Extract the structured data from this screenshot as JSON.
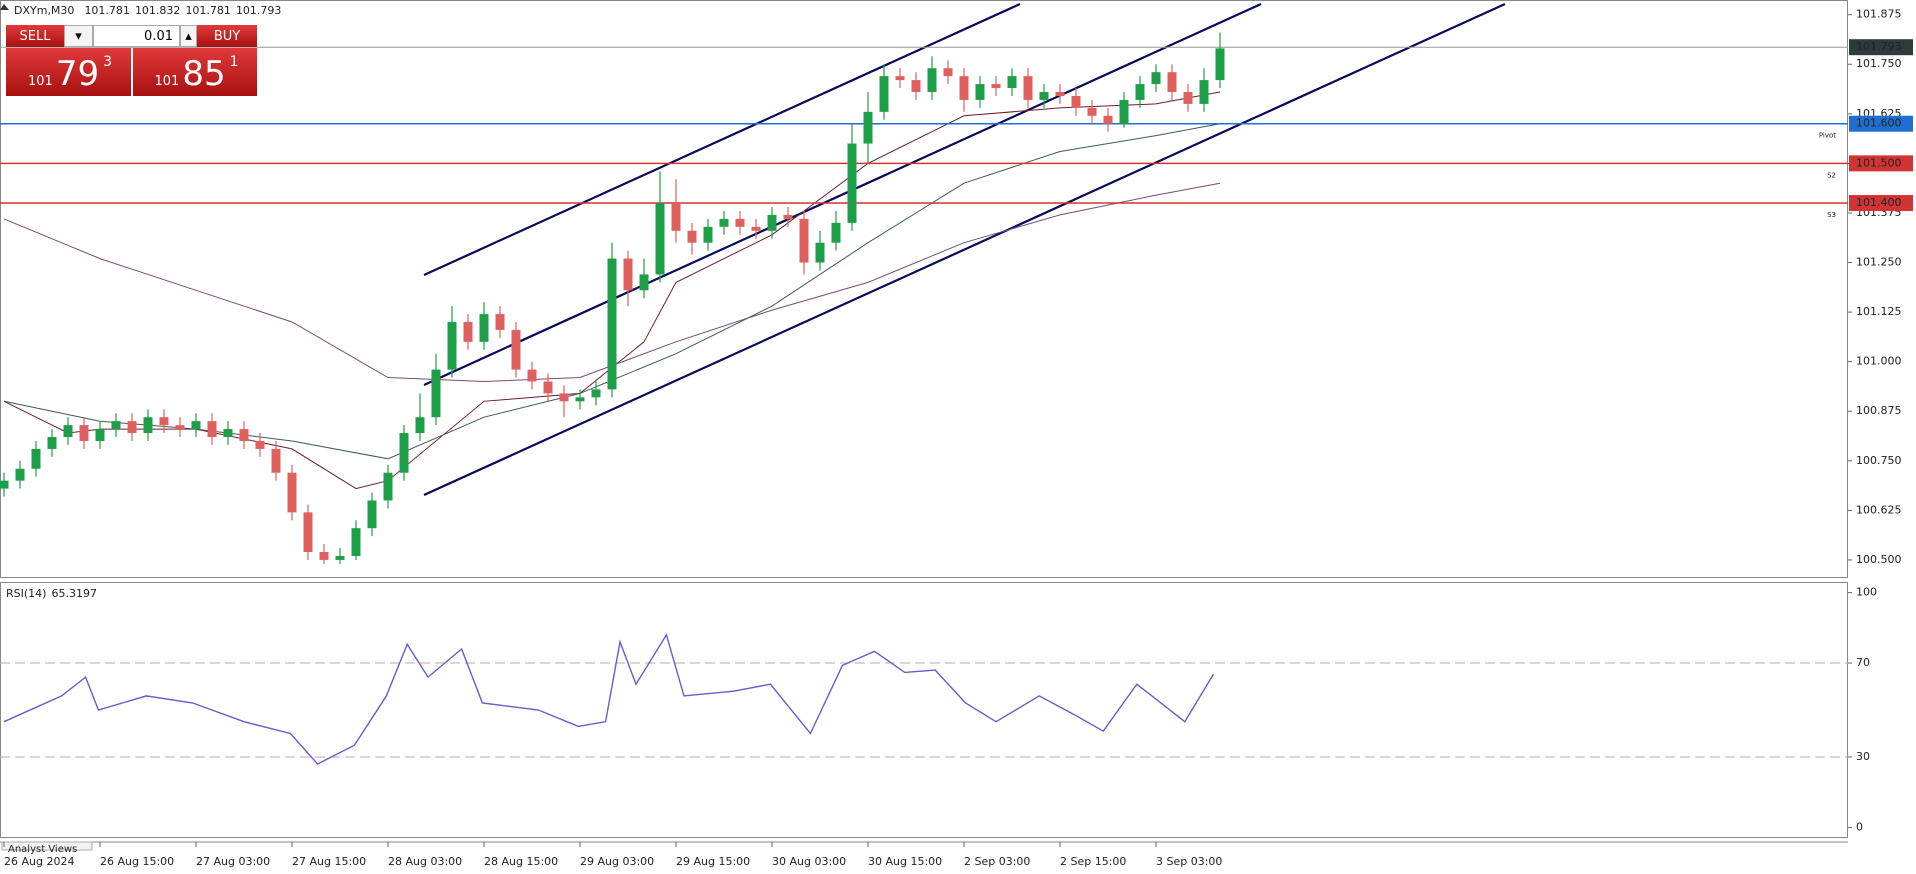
{
  "header": {
    "symbol": "DXYm,M30",
    "ohlc": [
      101.781,
      101.832,
      101.781,
      101.793
    ]
  },
  "trade_panel": {
    "sell": "SELL",
    "buy": "BUY",
    "volume": "0.01",
    "bid": [
      "101",
      "79",
      "3"
    ],
    "ask": [
      "101",
      "85",
      "1"
    ]
  },
  "footer": {
    "tab": "Analyst Views"
  },
  "chart_data": [
    {
      "type": "candlestick",
      "categories": [
        "26 Aug 2024",
        null,
        null,
        null,
        null,
        null,
        "26 Aug 15:00",
        null,
        null,
        null,
        null,
        null,
        "27 Aug 03:00",
        null,
        null,
        null,
        null,
        null,
        "27 Aug 15:00",
        null,
        null,
        null,
        null,
        null,
        "28 Aug 03:00",
        null,
        null,
        null,
        null,
        null,
        "28 Aug 15:00",
        null,
        null,
        null,
        null,
        null,
        "29 Aug 03:00",
        null,
        null,
        null,
        null,
        null,
        "29 Aug 15:00",
        null,
        null,
        null,
        null,
        null,
        "30 Aug 03:00",
        null,
        null,
        null,
        null,
        null,
        "30 Aug 15:00",
        null,
        null,
        null,
        null,
        null,
        "2 Sep 03:00",
        null,
        null,
        null,
        null,
        null,
        "2 Sep 15:00",
        null,
        null,
        null,
        null,
        null,
        "3 Sep 03:00",
        null,
        null,
        null,
        null
      ],
      "open": [
        100.68,
        100.7,
        100.73,
        100.78,
        100.81,
        100.84,
        100.8,
        100.83,
        100.85,
        100.82,
        100.86,
        100.84,
        100.83,
        100.85,
        100.81,
        100.83,
        100.8,
        100.78,
        100.72,
        100.62,
        100.52,
        100.5,
        100.51,
        100.58,
        100.65,
        100.72,
        100.82,
        100.86,
        100.98,
        101.1,
        101.05,
        101.12,
        101.08,
        100.98,
        100.95,
        100.92,
        100.9,
        100.91,
        100.93,
        101.26,
        101.18,
        101.22,
        101.4,
        101.33,
        101.3,
        101.34,
        101.36,
        101.34,
        101.33,
        101.37,
        101.36,
        101.25,
        101.3,
        101.35,
        101.55,
        101.63,
        101.72,
        101.71,
        101.68,
        101.74,
        101.72,
        101.66,
        101.7,
        101.69,
        101.72,
        101.66,
        101.68,
        101.67,
        101.64,
        101.62,
        101.6,
        101.66,
        101.7,
        101.73,
        101.68,
        101.65,
        101.71
      ],
      "high": [
        100.72,
        100.75,
        100.8,
        100.83,
        100.86,
        100.86,
        100.85,
        100.87,
        100.87,
        100.88,
        100.88,
        100.86,
        100.87,
        100.87,
        100.85,
        100.85,
        100.82,
        100.8,
        100.74,
        100.64,
        100.54,
        100.53,
        100.6,
        100.67,
        100.74,
        100.84,
        100.92,
        101.02,
        101.14,
        101.12,
        101.15,
        101.14,
        101.1,
        101.0,
        100.97,
        100.94,
        100.93,
        100.95,
        101.3,
        101.28,
        101.26,
        101.48,
        101.46,
        101.35,
        101.36,
        101.38,
        101.38,
        101.36,
        101.39,
        101.39,
        101.38,
        101.33,
        101.38,
        101.6,
        101.68,
        101.75,
        101.74,
        101.73,
        101.77,
        101.76,
        101.74,
        101.72,
        101.72,
        101.74,
        101.74,
        101.7,
        101.7,
        101.69,
        101.66,
        101.64,
        101.68,
        101.72,
        101.75,
        101.75,
        101.7,
        101.74,
        101.83
      ],
      "low": [
        100.66,
        100.68,
        100.71,
        100.76,
        100.79,
        100.78,
        100.78,
        100.81,
        100.8,
        100.8,
        100.82,
        100.81,
        100.81,
        100.79,
        100.79,
        100.78,
        100.76,
        100.7,
        100.6,
        100.5,
        100.49,
        100.49,
        100.5,
        100.56,
        100.63,
        100.7,
        100.8,
        100.84,
        100.96,
        101.03,
        101.03,
        101.06,
        100.96,
        100.93,
        100.9,
        100.86,
        100.88,
        100.89,
        100.91,
        101.14,
        101.16,
        101.2,
        101.3,
        101.27,
        101.28,
        101.32,
        101.32,
        101.31,
        101.31,
        101.34,
        101.22,
        101.23,
        101.28,
        101.33,
        101.5,
        101.61,
        101.69,
        101.66,
        101.66,
        101.7,
        101.63,
        101.64,
        101.67,
        101.67,
        101.64,
        101.64,
        101.65,
        101.62,
        101.6,
        101.58,
        101.59,
        101.64,
        101.68,
        101.66,
        101.63,
        101.63,
        101.69
      ],
      "close": [
        100.7,
        100.73,
        100.78,
        100.81,
        100.84,
        100.8,
        100.83,
        100.85,
        100.82,
        100.86,
        100.84,
        100.83,
        100.85,
        100.81,
        100.83,
        100.8,
        100.78,
        100.72,
        100.62,
        100.52,
        100.5,
        100.51,
        100.58,
        100.65,
        100.72,
        100.82,
        100.86,
        100.98,
        101.1,
        101.05,
        101.12,
        101.08,
        100.98,
        100.95,
        100.92,
        100.9,
        100.91,
        100.93,
        101.26,
        101.18,
        101.22,
        101.4,
        101.33,
        101.3,
        101.34,
        101.36,
        101.34,
        101.33,
        101.37,
        101.36,
        101.25,
        101.3,
        101.35,
        101.55,
        101.63,
        101.72,
        101.71,
        101.68,
        101.74,
        101.72,
        101.66,
        101.7,
        101.69,
        101.72,
        101.66,
        101.68,
        101.67,
        101.64,
        101.62,
        101.6,
        101.66,
        101.7,
        101.73,
        101.68,
        101.65,
        101.71,
        101.79
      ],
      "up_color": "#1f9e4a",
      "down_color": "#e06060",
      "series": [
        {
          "color": "#6b1f2a",
          "x": [
            0,
            4,
            6,
            12,
            18,
            22,
            24,
            30,
            36,
            40,
            42,
            48,
            54,
            60,
            66,
            72,
            76
          ],
          "values": [
            100.9,
            100.82,
            100.83,
            100.83,
            100.78,
            100.68,
            100.7,
            100.9,
            100.92,
            101.05,
            101.2,
            101.32,
            101.5,
            101.62,
            101.64,
            101.65,
            101.68
          ]
        },
        {
          "color": "#3f5a55",
          "x": [
            0,
            6,
            12,
            18,
            24,
            30,
            36,
            42,
            48,
            54,
            60,
            66,
            72,
            76
          ],
          "values": [
            100.9,
            100.85,
            100.83,
            100.8,
            100.755,
            100.86,
            100.92,
            101.02,
            101.14,
            101.3,
            101.45,
            101.53,
            101.57,
            101.6
          ]
        },
        {
          "color": "#7a4a78",
          "x": [
            0,
            6,
            12,
            18,
            24,
            30,
            36,
            42,
            48,
            54,
            60,
            66,
            72,
            76
          ],
          "values": [
            101.36,
            101.26,
            101.18,
            101.1,
            100.96,
            100.95,
            100.96,
            101.05,
            101.13,
            101.2,
            101.3,
            101.37,
            101.42,
            101.45
          ]
        }
      ],
      "ylim": [
        100.457,
        101.912
      ],
      "yticks": [
        {
          "value": 100.5,
          "label": "100.500"
        },
        100.625,
        {
          "value": 100.75,
          "label": "100.750"
        },
        100.875,
        {
          "value": 101,
          "label": "101.000"
        },
        101.125,
        {
          "value": 101.25,
          "label": "101.250"
        },
        101.375,
        {
          "value": 101.5,
          "label": "101.500"
        },
        101.625,
        {
          "value": 101.75,
          "label": "101.750"
        },
        101.875
      ],
      "last_price": 101.793,
      "hlines": [
        {
          "value": 101.6,
          "label": "101.600",
          "name": "Pivot",
          "color": "#1e6fd0"
        },
        {
          "value": 101.5,
          "label": "101.500",
          "name": "S2",
          "color": "#d03434"
        },
        {
          "value": 101.4,
          "label": "101.400",
          "name": "S3",
          "color": "#d03434"
        }
      ]
    },
    {
      "type": "line",
      "title": "RSI(14)",
      "x": [
        0,
        3.6,
        5.1,
        5.9,
        8.9,
        11.8,
        15.0,
        17.9,
        19.6,
        21.9,
        23.9,
        25.2,
        26.5,
        28.6,
        29.9,
        33.4,
        35.9,
        37.6,
        38.5,
        39.5,
        41.4,
        42.5,
        45.6,
        47.9,
        50.4,
        52.4,
        54.4,
        56.3,
        58.2,
        60.1,
        62.0,
        64.7,
        66.9,
        68.7,
        70.8,
        73.8,
        75.6
      ],
      "series": [
        {
          "color": "#6a5acd",
          "values": [
            45,
            56,
            64,
            50,
            56,
            53,
            45,
            40,
            27,
            35,
            56,
            78,
            64,
            76,
            53,
            50,
            43,
            45,
            79,
            61,
            82,
            56,
            58,
            61,
            40,
            69,
            75,
            66,
            67,
            53,
            45,
            56,
            48,
            41,
            61,
            45,
            65.3197
          ]
        }
      ],
      "xlim": [
        -0.25,
        115.25
      ],
      "ylim": [
        -4.1,
        104.1
      ],
      "yticks": [
        0,
        30,
        70,
        100
      ],
      "levels": [
        30,
        70
      ]
    }
  ]
}
